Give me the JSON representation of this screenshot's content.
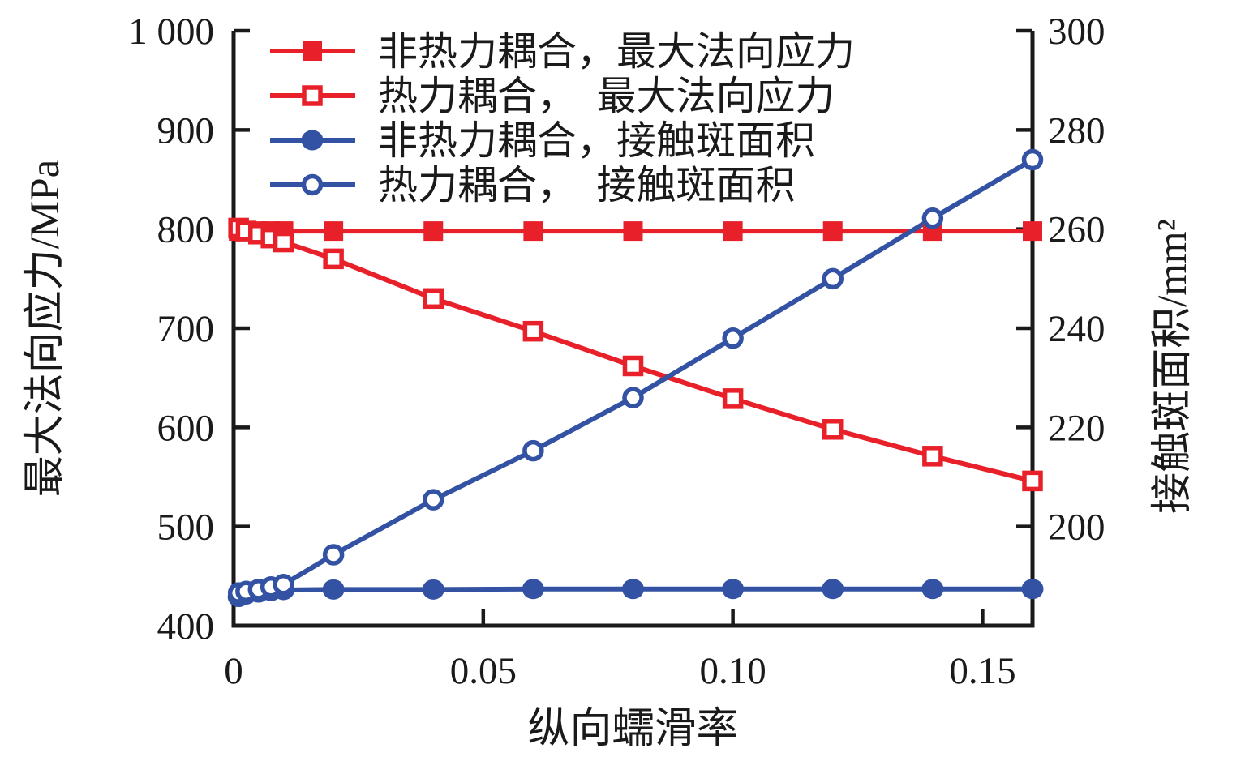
{
  "figure": {
    "x_axis": {
      "title": "纵向蠕滑率",
      "tick_values": [
        0,
        0.05,
        0.1,
        0.15
      ],
      "tick_labels": [
        "0",
        "0.05",
        "0.10",
        "0.15"
      ],
      "range": [
        0,
        0.16
      ]
    },
    "left_axis": {
      "title": "最大法向应力/MPa",
      "tick_values": [
        400,
        500,
        600,
        700,
        800,
        900,
        1000
      ],
      "tick_labels": [
        "400",
        "500",
        "600",
        "700",
        "800",
        "900",
        "1 000"
      ],
      "range": [
        400,
        1000
      ]
    },
    "right_axis": {
      "title": "接触斑面积/mm²",
      "tick_values": [
        200,
        220,
        240,
        260,
        280,
        300
      ],
      "tick_labels": [
        "200",
        "220",
        "240",
        "260",
        "280",
        "300"
      ],
      "range": [
        180,
        300
      ]
    },
    "colors": {
      "red": "#e8202a",
      "blue": "#3352a3",
      "axis": "#1a1a1a"
    }
  },
  "legend": {
    "items": [
      {
        "id": "non-thermal-stress",
        "display_label": "非热力耦合，最大法向应力",
        "marker": "square-filled",
        "color": "#e8202a"
      },
      {
        "id": "thermal-stress",
        "display_label": "热力耦合，　最大法向应力",
        "marker": "square-open",
        "color": "#e8202a"
      },
      {
        "id": "non-thermal-area",
        "display_label": "非热力耦合，接触斑面积",
        "marker": "circle-filled",
        "color": "#3352a3"
      },
      {
        "id": "thermal-area",
        "display_label": "热力耦合，　接触斑面积",
        "marker": "circle-open",
        "color": "#3352a3"
      }
    ]
  },
  "chart_data": {
    "type": "line",
    "title": "",
    "xlabel": "纵向蠕滑率",
    "ylabel_left": "最大法向应力/MPa",
    "ylabel_right": "接触斑面积/mm²",
    "x": [
      0.001,
      0.0025,
      0.005,
      0.0075,
      0.01,
      0.02,
      0.04,
      0.06,
      0.08,
      0.1,
      0.12,
      0.14,
      0.16
    ],
    "xlim": [
      0,
      0.16
    ],
    "ylim_left": [
      400,
      1000
    ],
    "ylim_right": [
      180,
      300
    ],
    "grid": false,
    "legend_position": "top-left",
    "series": [
      {
        "id": "non-thermal-stress",
        "name": "非热力耦合，最大法向应力",
        "axis": "left",
        "unit": "MPa",
        "color": "#e8202a",
        "marker": "square-filled",
        "values": [
          798,
          798,
          798,
          798,
          798,
          798,
          798,
          798,
          798,
          798,
          798,
          798,
          798
        ]
      },
      {
        "id": "thermal-stress",
        "name": "热力耦合，最大法向应力",
        "axis": "left",
        "unit": "MPa",
        "color": "#e8202a",
        "marker": "square-open",
        "values": [
          801,
          798,
          795,
          791,
          787,
          770,
          730,
          697,
          662,
          629,
          598,
          571,
          546
        ]
      },
      {
        "id": "non-thermal-area",
        "name": "非热力耦合，接触斑面积",
        "axis": "right",
        "unit": "mm²",
        "color": "#3352a3",
        "marker": "circle-filled",
        "values": [
          185.8,
          186.3,
          186.7,
          187.0,
          187.2,
          187.3,
          187.3,
          187.4,
          187.4,
          187.4,
          187.4,
          187.4,
          187.4
        ]
      },
      {
        "id": "thermal-area",
        "name": "热力耦合，接触斑面积",
        "axis": "right",
        "unit": "mm²",
        "color": "#3352a3",
        "marker": "circle-open",
        "values": [
          186.6,
          186.9,
          187.3,
          187.8,
          188.3,
          194.3,
          205.4,
          215.3,
          226.0,
          238.0,
          250.0,
          262.2,
          274.0
        ]
      }
    ]
  }
}
